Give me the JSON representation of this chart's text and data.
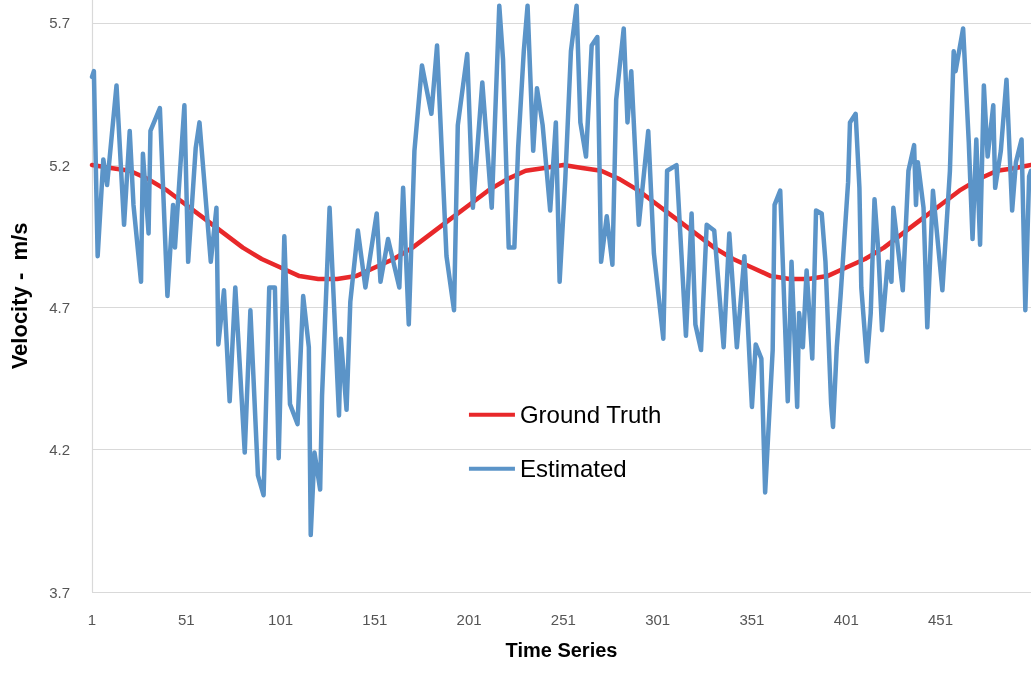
{
  "chart_data": {
    "type": "line",
    "xlabel": "Time Series",
    "ylabel": "Velocity -  m/s",
    "xlim": [
      1,
      499
    ],
    "xticks": [
      1,
      51,
      101,
      151,
      201,
      251,
      301,
      351,
      401,
      451
    ],
    "ylim": [
      3.7,
      5.78
    ],
    "yticks": [
      3.7,
      4.2,
      4.7,
      5.2,
      5.7
    ],
    "grid": "y",
    "legend": "bottom",
    "marker": "none",
    "line_style": "solid",
    "series": [
      {
        "name": "Ground Truth",
        "color": "#e8282a",
        "x": [
          1,
          11,
          21,
          31,
          41,
          51,
          61,
          71,
          81,
          91,
          101,
          111,
          121,
          126,
          131,
          141,
          151,
          161,
          171,
          181,
          191,
          201,
          211,
          221,
          231,
          241,
          251,
          261,
          271,
          281,
          291,
          301,
          311,
          321,
          331,
          341,
          351,
          361,
          371,
          376,
          381,
          391,
          401,
          411,
          421,
          431,
          441,
          451,
          461,
          471,
          481,
          491,
          499
        ],
        "values": [
          5.2,
          5.19,
          5.18,
          5.15,
          5.11,
          5.06,
          5.01,
          4.96,
          4.91,
          4.87,
          4.84,
          4.81,
          4.8,
          4.8,
          4.8,
          4.81,
          4.84,
          4.87,
          4.91,
          4.96,
          5.01,
          5.06,
          5.11,
          5.15,
          5.18,
          5.19,
          5.2,
          5.19,
          5.18,
          5.15,
          5.11,
          5.06,
          5.01,
          4.96,
          4.91,
          4.87,
          4.84,
          4.81,
          4.8,
          4.8,
          4.8,
          4.81,
          4.84,
          4.87,
          4.91,
          4.96,
          5.01,
          5.06,
          5.11,
          5.15,
          5.18,
          5.19,
          5.2
        ]
      },
      {
        "name": "Estimated",
        "color": "#5b94c8",
        "x": [
          1,
          2,
          4,
          7,
          9,
          14,
          18,
          21,
          23,
          27,
          28,
          31,
          32,
          37,
          41,
          44,
          45,
          50,
          52,
          56,
          58,
          64,
          67,
          68,
          71,
          74,
          77,
          79,
          82,
          85,
          89,
          92,
          95,
          98,
          100,
          103,
          106,
          110,
          113,
          116,
          117,
          119,
          122,
          123,
          127,
          132,
          133,
          136,
          138,
          142,
          146,
          152,
          154,
          158,
          164,
          166,
          169,
          172,
          176,
          181,
          184,
          189,
          193,
          195,
          200,
          203,
          208,
          213,
          217,
          219,
          222,
          225,
          227,
          230,
          232,
          235,
          237,
          240,
          244,
          247,
          249,
          252,
          255,
          258,
          260,
          263,
          266,
          269,
          271,
          274,
          277,
          279,
          283,
          285,
          287,
          291,
          296,
          299,
          304,
          306,
          311,
          316,
          319,
          321,
          324,
          327,
          331,
          336,
          339,
          343,
          347,
          351,
          353,
          356,
          358,
          362,
          363,
          366,
          370,
          372,
          375,
          376,
          378,
          380,
          383,
          385,
          388,
          390,
          393,
          394,
          396,
          398,
          402,
          403,
          406,
          408,
          409,
          412,
          414,
          416,
          418,
          420,
          423,
          425,
          426,
          431,
          434,
          437,
          438,
          439,
          442,
          444,
          447,
          452,
          456,
          458,
          459,
          463,
          466,
          468,
          470,
          472,
          474,
          476,
          479,
          480,
          483,
          486,
          489,
          491,
          494,
          496,
          498,
          499
        ],
        "values": [
          5.51,
          5.53,
          4.88,
          5.22,
          5.13,
          5.48,
          4.99,
          5.32,
          5.06,
          4.79,
          5.24,
          4.96,
          5.32,
          5.4,
          4.74,
          5.06,
          4.91,
          5.41,
          4.86,
          5.26,
          5.35,
          4.86,
          5.05,
          4.57,
          4.76,
          4.37,
          4.77,
          4.54,
          4.19,
          4.69,
          4.11,
          4.04,
          4.77,
          4.77,
          4.17,
          4.95,
          4.36,
          4.29,
          4.74,
          4.56,
          3.9,
          4.19,
          4.06,
          4.39,
          5.05,
          4.32,
          4.59,
          4.34,
          4.72,
          4.97,
          4.77,
          5.03,
          4.79,
          4.94,
          4.77,
          5.12,
          4.64,
          5.25,
          5.55,
          5.38,
          5.62,
          4.88,
          4.69,
          5.34,
          5.59,
          5.05,
          5.49,
          5.05,
          5.76,
          5.57,
          4.91,
          4.91,
          5.26,
          5.6,
          5.76,
          5.25,
          5.47,
          5.34,
          5.04,
          5.35,
          4.79,
          5.15,
          5.6,
          5.76,
          5.35,
          5.23,
          5.62,
          5.65,
          4.86,
          5.02,
          4.85,
          5.43,
          5.68,
          5.35,
          5.53,
          4.99,
          5.32,
          4.89,
          4.59,
          5.18,
          5.2,
          4.6,
          5.03,
          4.64,
          4.55,
          4.99,
          4.97,
          4.56,
          4.96,
          4.56,
          4.88,
          4.35,
          4.57,
          4.52,
          4.05,
          4.55,
          5.06,
          5.11,
          4.37,
          4.86,
          4.35,
          4.68,
          4.56,
          4.83,
          4.52,
          5.04,
          5.03,
          4.86,
          4.36,
          4.28,
          4.56,
          4.74,
          5.14,
          5.35,
          5.38,
          5.12,
          4.77,
          4.51,
          4.68,
          5.08,
          4.9,
          4.62,
          4.86,
          4.79,
          5.05,
          4.76,
          5.18,
          5.27,
          5.06,
          5.21,
          5.05,
          4.63,
          5.11,
          4.76,
          5.18,
          5.6,
          5.53,
          5.68,
          5.28,
          4.94,
          5.29,
          4.92,
          5.48,
          5.23,
          5.41,
          5.12,
          5.25,
          5.5,
          5.04,
          5.21,
          5.29,
          4.69,
          5.16,
          5.18
        ]
      }
    ]
  }
}
